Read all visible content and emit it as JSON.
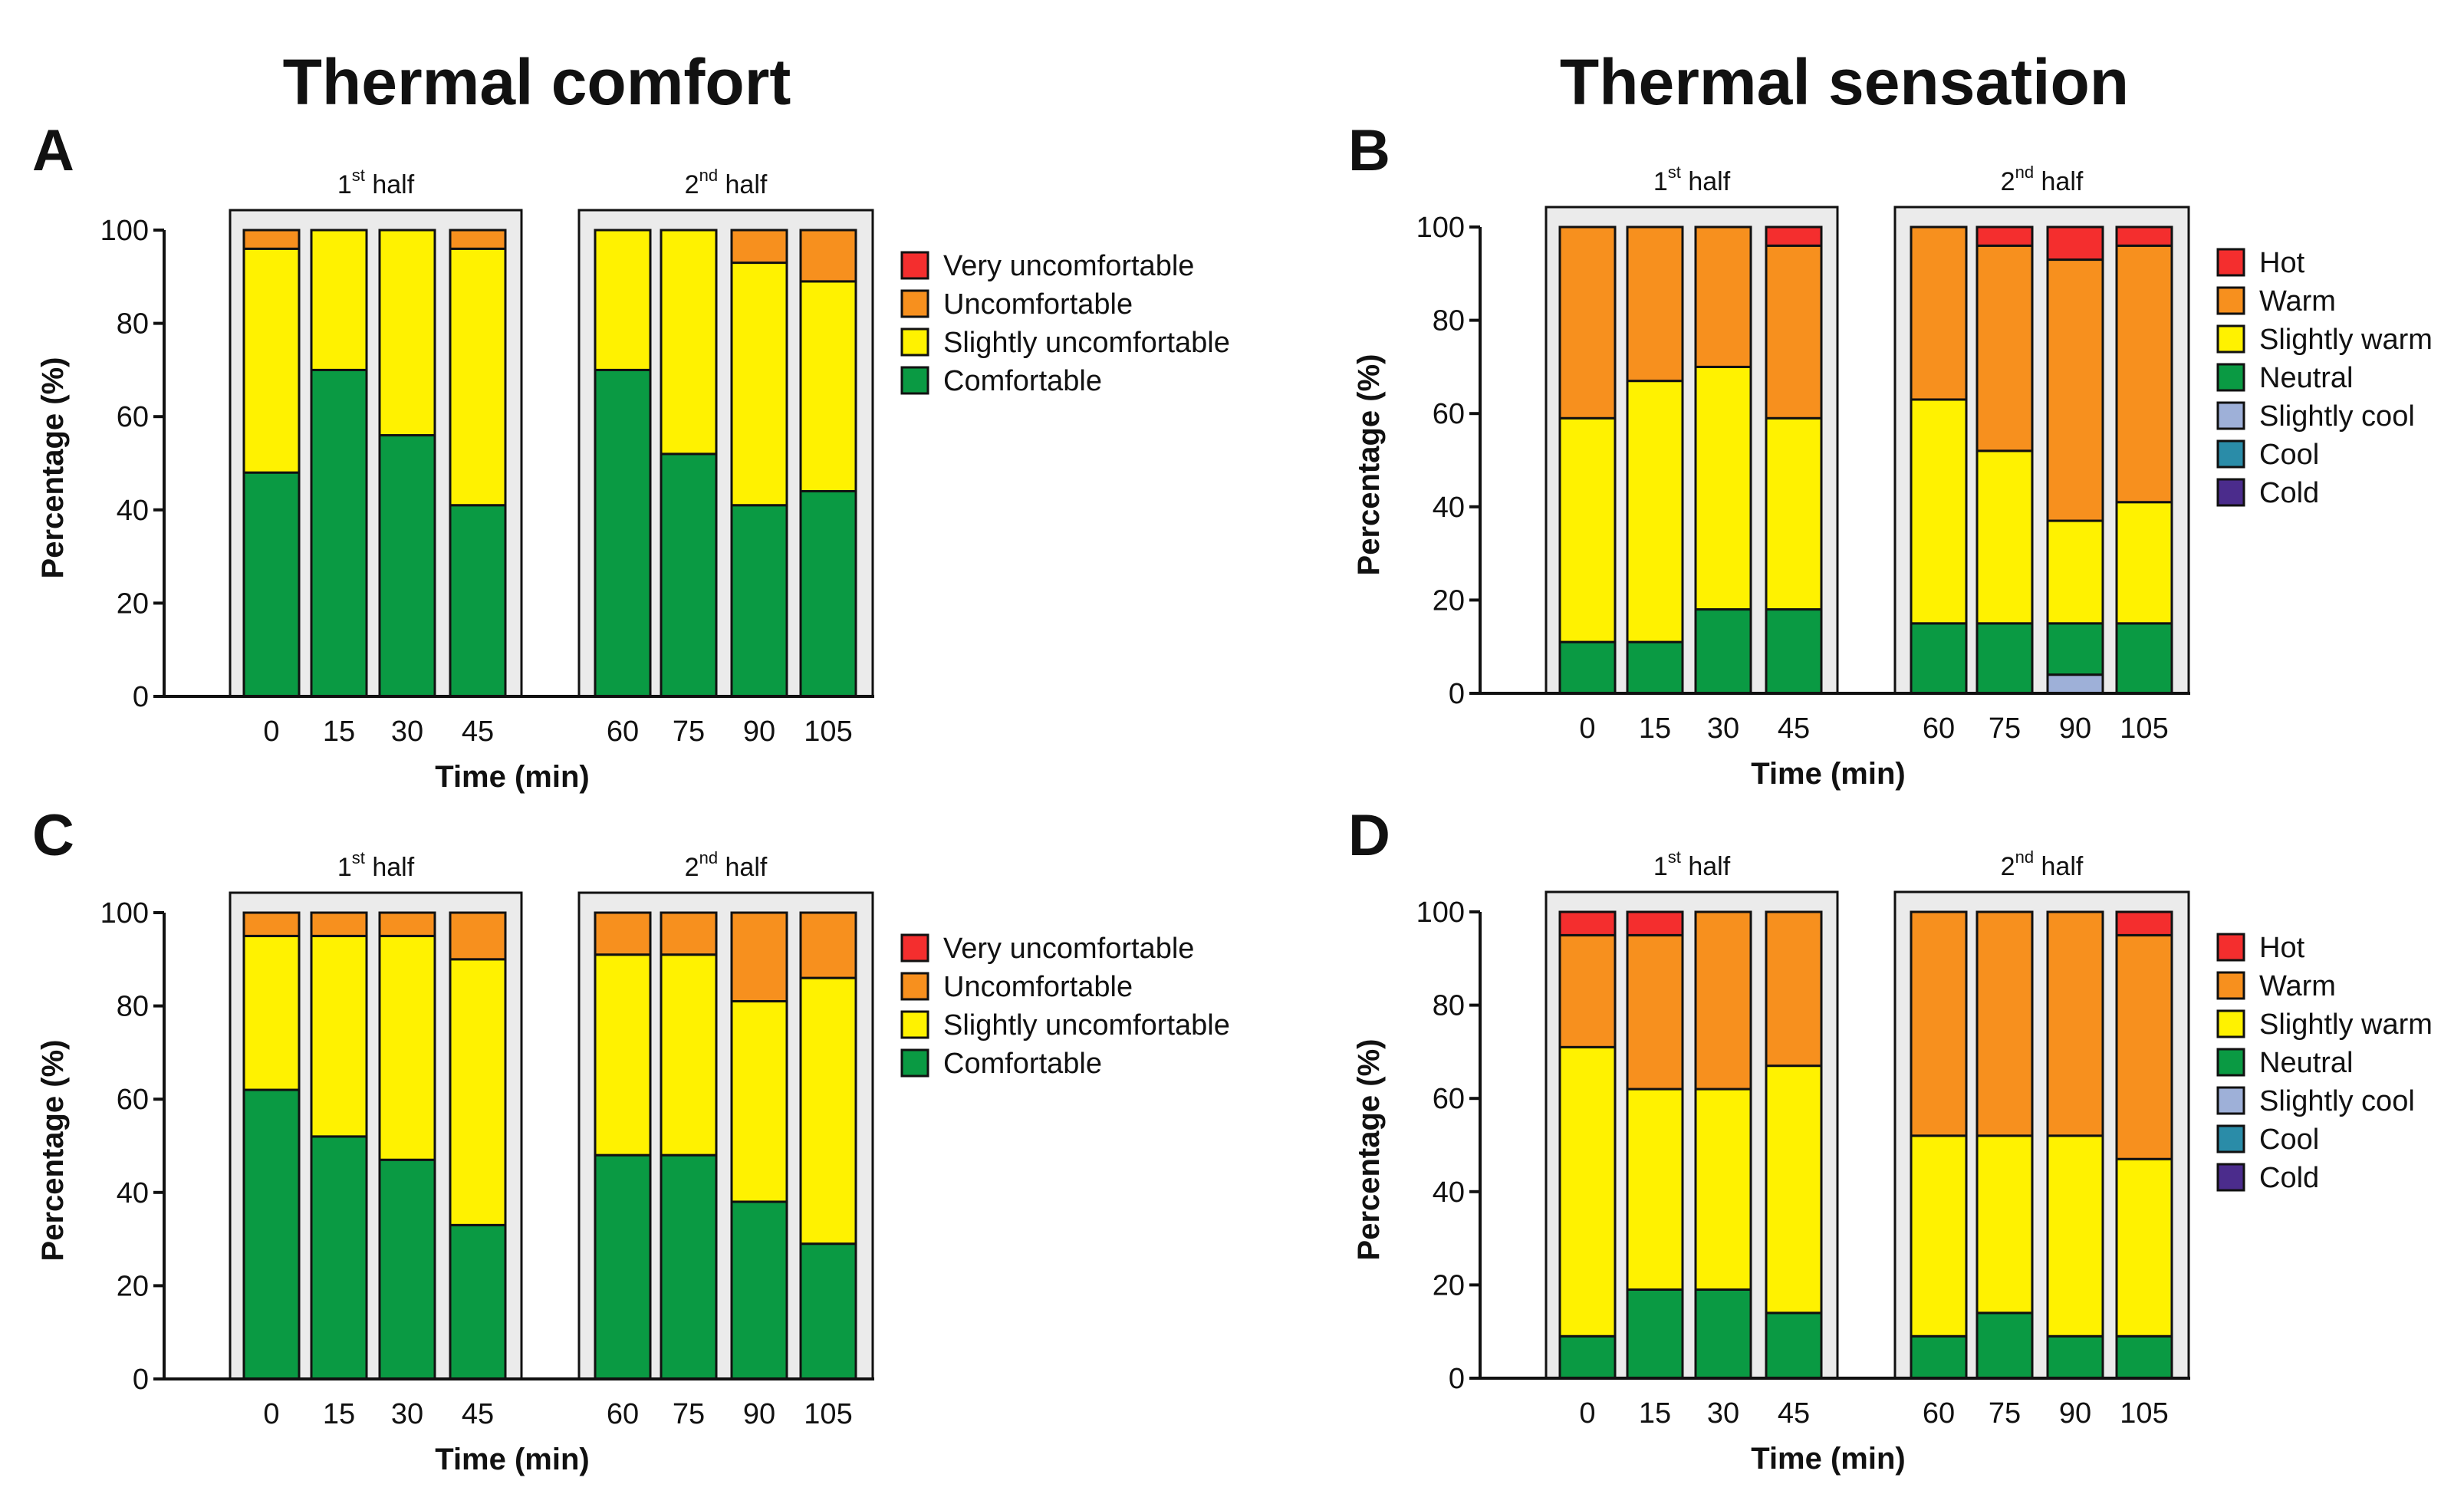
{
  "titles": {
    "comfort": "Thermal comfort",
    "sensation": "Thermal sensation"
  },
  "colors": {
    "very_uncomfortable": "#f42e2e",
    "uncomfortable": "#f7901e",
    "slightly_uncomfortable": "#fff200",
    "comfortable": "#0a9a43",
    "hot": "#f42e2e",
    "warm": "#f7901e",
    "slightly_warm": "#fff200",
    "neutral": "#0a9a43",
    "slightly_cool": "#9eb0d8",
    "cool": "#2a8ca8",
    "cold": "#4b2c8c",
    "panel_bg": "#ebebeb"
  },
  "chart_data": [
    {
      "id": "A",
      "letter": "A",
      "type": "bar",
      "title": "",
      "xlabel": "Time (min)",
      "ylabel": "Percentage (%)",
      "ylim": [
        0,
        100
      ],
      "yticks": [
        "0",
        "20",
        "40",
        "60",
        "80",
        "100"
      ],
      "categories": [
        "0",
        "15",
        "30",
        "45",
        "60",
        "75",
        "90",
        "105"
      ],
      "groups": [
        {
          "base": "1",
          "sup": "st",
          "rest": " half"
        },
        {
          "base": "2",
          "sup": "nd",
          "rest": " half"
        }
      ],
      "legend": [
        "Very uncomfortable",
        "Uncomfortable",
        "Slightly uncomfortable",
        "Comfortable"
      ],
      "legend_keys": [
        "very_uncomfortable",
        "uncomfortable",
        "slightly_uncomfortable",
        "comfortable"
      ],
      "series": [
        {
          "name": "Comfortable",
          "key": "comfortable",
          "values": [
            48,
            70,
            56,
            41,
            70,
            52,
            41,
            44
          ]
        },
        {
          "name": "Slightly uncomfortable",
          "key": "slightly_uncomfortable",
          "values": [
            48,
            30,
            44,
            55,
            30,
            48,
            52,
            45
          ]
        },
        {
          "name": "Uncomfortable",
          "key": "uncomfortable",
          "values": [
            4,
            0,
            0,
            4,
            0,
            0,
            7,
            11
          ]
        },
        {
          "name": "Very uncomfortable",
          "key": "very_uncomfortable",
          "values": [
            0,
            0,
            0,
            0,
            0,
            0,
            0,
            0
          ]
        }
      ]
    },
    {
      "id": "B",
      "letter": "B",
      "type": "bar",
      "title": "",
      "xlabel": "Time (min)",
      "ylabel": "Percentage (%)",
      "ylim": [
        0,
        100
      ],
      "yticks": [
        "0",
        "20",
        "40",
        "60",
        "80",
        "100"
      ],
      "categories": [
        "0",
        "15",
        "30",
        "45",
        "60",
        "75",
        "90",
        "105"
      ],
      "groups": [
        {
          "base": "1",
          "sup": "st",
          "rest": " half"
        },
        {
          "base": "2",
          "sup": "nd",
          "rest": " half"
        }
      ],
      "legend": [
        "Hot",
        "Warm",
        "Slightly warm",
        "Neutral",
        "Slightly cool",
        "Cool",
        "Cold"
      ],
      "legend_keys": [
        "hot",
        "warm",
        "slightly_warm",
        "neutral",
        "slightly_cool",
        "cool",
        "cold"
      ],
      "series": [
        {
          "name": "Cold",
          "key": "cold",
          "values": [
            0,
            0,
            0,
            0,
            0,
            0,
            0,
            0
          ]
        },
        {
          "name": "Cool",
          "key": "cool",
          "values": [
            0,
            0,
            0,
            0,
            0,
            0,
            0,
            0
          ]
        },
        {
          "name": "Slightly cool",
          "key": "slightly_cool",
          "values": [
            0,
            0,
            0,
            0,
            0,
            0,
            4,
            0
          ]
        },
        {
          "name": "Neutral",
          "key": "neutral",
          "values": [
            11,
            11,
            18,
            18,
            15,
            15,
            11,
            15
          ]
        },
        {
          "name": "Slightly warm",
          "key": "slightly_warm",
          "values": [
            48,
            56,
            52,
            41,
            48,
            37,
            22,
            26
          ]
        },
        {
          "name": "Warm",
          "key": "warm",
          "values": [
            41,
            33,
            30,
            37,
            37,
            44,
            56,
            55
          ]
        },
        {
          "name": "Hot",
          "key": "hot",
          "values": [
            0,
            0,
            0,
            4,
            0,
            4,
            7,
            4
          ]
        }
      ]
    },
    {
      "id": "C",
      "letter": "C",
      "type": "bar",
      "title": "",
      "xlabel": "Time (min)",
      "ylabel": "Percentage (%)",
      "ylim": [
        0,
        100
      ],
      "yticks": [
        "0",
        "20",
        "40",
        "60",
        "80",
        "100"
      ],
      "categories": [
        "0",
        "15",
        "30",
        "45",
        "60",
        "75",
        "90",
        "105"
      ],
      "groups": [
        {
          "base": "1",
          "sup": "st",
          "rest": " half"
        },
        {
          "base": "2",
          "sup": "nd",
          "rest": " half"
        }
      ],
      "legend": [
        "Very uncomfortable",
        "Uncomfortable",
        "Slightly uncomfortable",
        "Comfortable"
      ],
      "legend_keys": [
        "very_uncomfortable",
        "uncomfortable",
        "slightly_uncomfortable",
        "comfortable"
      ],
      "series": [
        {
          "name": "Comfortable",
          "key": "comfortable",
          "values": [
            62,
            52,
            47,
            33,
            48,
            48,
            38,
            29
          ]
        },
        {
          "name": "Slightly uncomfortable",
          "key": "slightly_uncomfortable",
          "values": [
            33,
            43,
            48,
            57,
            43,
            43,
            43,
            57
          ]
        },
        {
          "name": "Uncomfortable",
          "key": "uncomfortable",
          "values": [
            5,
            5,
            5,
            10,
            9,
            9,
            19,
            14
          ]
        },
        {
          "name": "Very uncomfortable",
          "key": "very_uncomfortable",
          "values": [
            0,
            0,
            0,
            0,
            0,
            0,
            0,
            0
          ]
        }
      ]
    },
    {
      "id": "D",
      "letter": "D",
      "type": "bar",
      "title": "",
      "xlabel": "Time (min)",
      "ylabel": "Percentage (%)",
      "ylim": [
        0,
        100
      ],
      "yticks": [
        "0",
        "20",
        "40",
        "60",
        "80",
        "100"
      ],
      "categories": [
        "0",
        "15",
        "30",
        "45",
        "60",
        "75",
        "90",
        "105"
      ],
      "groups": [
        {
          "base": "1",
          "sup": "st",
          "rest": " half"
        },
        {
          "base": "2",
          "sup": "nd",
          "rest": " half"
        }
      ],
      "legend": [
        "Hot",
        "Warm",
        "Slightly warm",
        "Neutral",
        "Slightly cool",
        "Cool",
        "Cold"
      ],
      "legend_keys": [
        "hot",
        "warm",
        "slightly_warm",
        "neutral",
        "slightly_cool",
        "cool",
        "cold"
      ],
      "series": [
        {
          "name": "Cold",
          "key": "cold",
          "values": [
            0,
            0,
            0,
            0,
            0,
            0,
            0,
            0
          ]
        },
        {
          "name": "Cool",
          "key": "cool",
          "values": [
            0,
            0,
            0,
            0,
            0,
            0,
            0,
            0
          ]
        },
        {
          "name": "Slightly cool",
          "key": "slightly_cool",
          "values": [
            0,
            0,
            0,
            0,
            0,
            0,
            0,
            0
          ]
        },
        {
          "name": "Neutral",
          "key": "neutral",
          "values": [
            9,
            19,
            19,
            14,
            9,
            14,
            9,
            9
          ]
        },
        {
          "name": "Slightly warm",
          "key": "slightly_warm",
          "values": [
            62,
            43,
            43,
            53,
            43,
            38,
            43,
            38
          ]
        },
        {
          "name": "Warm",
          "key": "warm",
          "values": [
            24,
            33,
            38,
            33,
            48,
            48,
            48,
            48
          ]
        },
        {
          "name": "Hot",
          "key": "hot",
          "values": [
            5,
            5,
            0,
            0,
            0,
            0,
            0,
            5
          ]
        }
      ]
    }
  ]
}
